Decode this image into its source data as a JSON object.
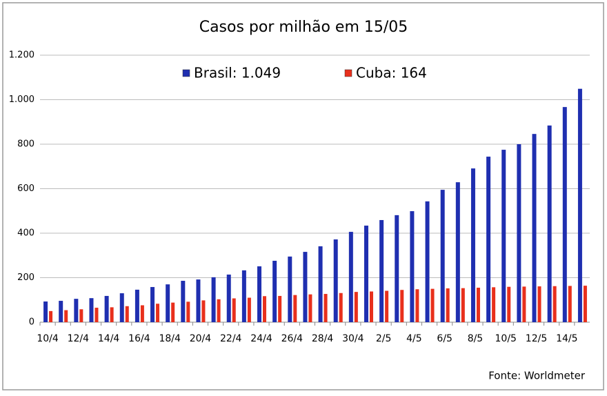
{
  "chart_data": {
    "type": "bar",
    "title": "Casos por milhão em 15/05",
    "source": "Fonte: Worldmeter",
    "categories": [
      "10/4",
      null,
      "12/4",
      null,
      "14/4",
      null,
      "16/4",
      null,
      "18/4",
      null,
      "20/4",
      null,
      "22/4",
      null,
      "24/4",
      null,
      "26/4",
      null,
      "28/4",
      null,
      "30/4",
      null,
      "2/5",
      null,
      "4/5",
      null,
      "6/5",
      null,
      "8/5",
      null,
      "10/5",
      null,
      "12/5",
      null,
      "14/5",
      null
    ],
    "series": [
      {
        "name": "Brasil: 1.049",
        "color": "#1f2fb0",
        "values": [
          93,
          96,
          105,
          108,
          118,
          130,
          146,
          158,
          170,
          186,
          192,
          202,
          214,
          233,
          251,
          276,
          295,
          316,
          341,
          372,
          406,
          434,
          459,
          481,
          499,
          543,
          595,
          629,
          691,
          744,
          775,
          800,
          846,
          884,
          967,
          1049
        ]
      },
      {
        "name": "Cuba: 164",
        "color": "#e8301c",
        "values": [
          50,
          54,
          58,
          65,
          67,
          72,
          76,
          83,
          88,
          92,
          98,
          103,
          107,
          110,
          117,
          118,
          122,
          125,
          127,
          131,
          136,
          138,
          141,
          145,
          148,
          150,
          152,
          153,
          155,
          157,
          159,
          160,
          161,
          162,
          163,
          164
        ]
      }
    ],
    "ylim": [
      0,
      1200
    ],
    "yticks": [
      0,
      200,
      400,
      600,
      800,
      {
        "value": 1000,
        "label": "1.000"
      },
      {
        "value": 1200,
        "label": "1.200"
      }
    ],
    "grid": true,
    "legend": "top"
  }
}
